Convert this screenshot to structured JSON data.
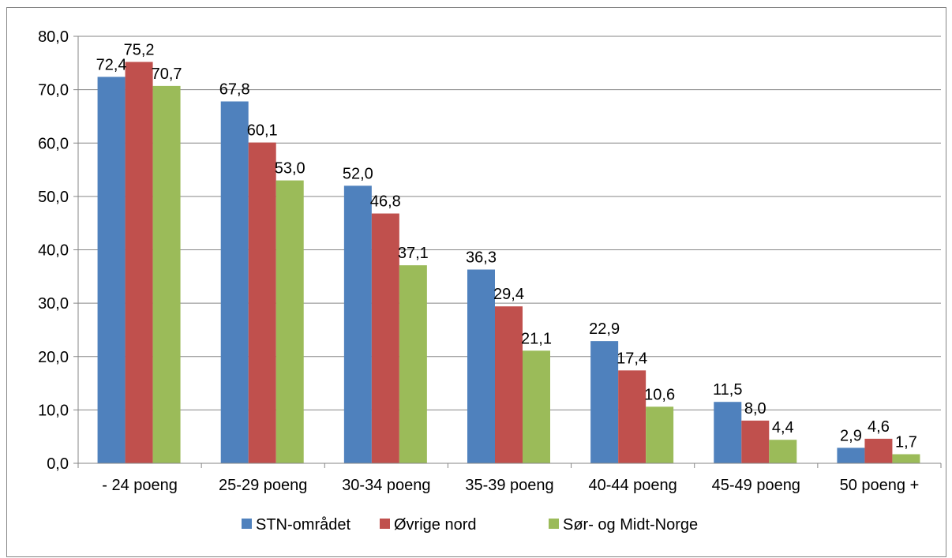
{
  "chart_data": {
    "type": "bar",
    "categories": [
      "- 24 poeng",
      "25-29 poeng",
      "30-34 poeng",
      "35-39 poeng",
      "40-44 poeng",
      "45-49 poeng",
      "50 poeng +"
    ],
    "series": [
      {
        "name": "STN-området",
        "color": "#4F81BD",
        "values": [
          72.4,
          67.8,
          52.0,
          36.3,
          22.9,
          11.5,
          2.9
        ]
      },
      {
        "name": "Øvrige nord",
        "color": "#C0504D",
        "values": [
          75.2,
          60.1,
          46.8,
          29.4,
          17.4,
          8.0,
          4.6
        ]
      },
      {
        "name": "Sør- og Midt-Norge",
        "color": "#9BBB59",
        "values": [
          70.7,
          53.0,
          37.1,
          21.1,
          10.6,
          4.4,
          1.7
        ]
      }
    ],
    "data_labels": [
      [
        "72,4",
        "67,8",
        "52,0",
        "36,3",
        "22,9",
        "11,5",
        "2,9"
      ],
      [
        "75,2",
        "60,1",
        "46,8",
        "29,4",
        "17,4",
        "8,0",
        "4,6"
      ],
      [
        "70,7",
        "53,0",
        "37,1",
        "21,1",
        "10,6",
        "4,4",
        "1,7"
      ]
    ],
    "y_ticks": [
      0,
      10,
      20,
      30,
      40,
      50,
      60,
      70,
      80
    ],
    "y_tick_labels": [
      "0,0",
      "10,0",
      "20,0",
      "30,0",
      "40,0",
      "50,0",
      "60,0",
      "70,0",
      "80,0"
    ],
    "ylim": [
      0,
      80
    ],
    "grid": true,
    "legend_position": "bottom"
  }
}
